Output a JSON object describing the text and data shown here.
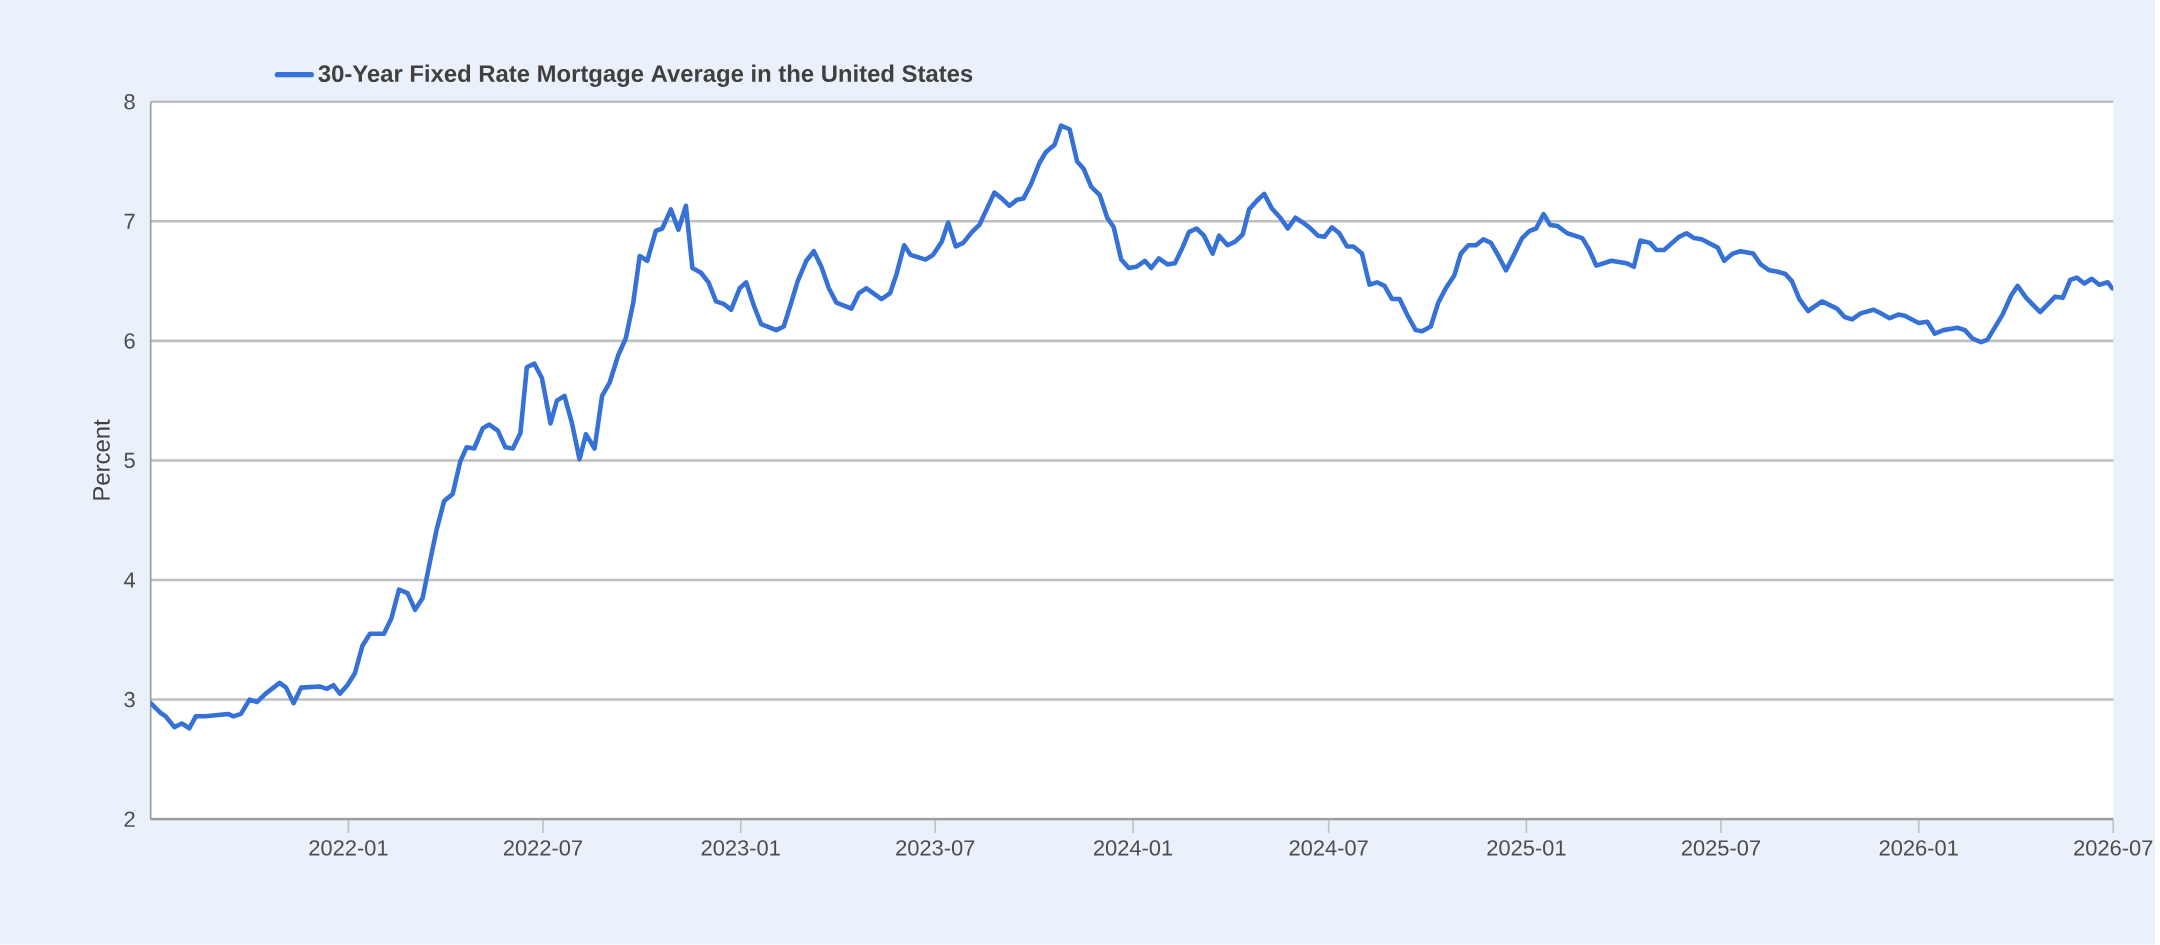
{
  "chart_data": {
    "type": "line",
    "ylabel": "Percent",
    "x": [
      "2021-07-01",
      "2021-07-10",
      "2021-07-15",
      "2021-07-23",
      "2021-07-30",
      "2021-08-06",
      "2021-08-12",
      "2021-08-21",
      "2021-09-11",
      "2021-09-16",
      "2021-09-23",
      "2021-10-01",
      "2021-10-08",
      "2021-10-16",
      "2021-10-29",
      "2021-11-04",
      "2021-11-11",
      "2021-11-18",
      "2021-12-05",
      "2021-12-12",
      "2021-12-18",
      "2021-12-24",
      "2021-12-31",
      "2022-01-07",
      "2022-01-14",
      "2022-01-21",
      "2022-02-03",
      "2022-02-10",
      "2022-02-17",
      "2022-02-25",
      "2022-03-04",
      "2022-03-11",
      "2022-03-18",
      "2022-03-24",
      "2022-03-31",
      "2022-04-08",
      "2022-04-15",
      "2022-04-21",
      "2022-04-28",
      "2022-05-06",
      "2022-05-12",
      "2022-05-20",
      "2022-05-27",
      "2022-06-03",
      "2022-06-10",
      "2022-06-16",
      "2022-06-23",
      "2022-06-30",
      "2022-07-08",
      "2022-07-14",
      "2022-07-21",
      "2022-07-28",
      "2022-08-04",
      "2022-08-10",
      "2022-08-18",
      "2022-08-25",
      "2022-09-01",
      "2022-09-09",
      "2022-09-16",
      "2022-09-23",
      "2022-09-29",
      "2022-10-06",
      "2022-10-14",
      "2022-10-20",
      "2022-10-28",
      "2022-11-04",
      "2022-11-11",
      "2022-11-17",
      "2022-11-25",
      "2022-12-02",
      "2022-12-09",
      "2022-12-16",
      "2022-12-23",
      "2022-12-31",
      "2023-01-06",
      "2023-01-13",
      "2023-01-20",
      "2023-01-26",
      "2023-02-03",
      "2023-02-10",
      "2023-02-17",
      "2023-02-23",
      "2023-03-03",
      "2023-03-10",
      "2023-03-17",
      "2023-03-24",
      "2023-03-31",
      "2023-04-14",
      "2023-04-21",
      "2023-04-28",
      "2023-05-12",
      "2023-05-20",
      "2023-05-26",
      "2023-06-02",
      "2023-06-08",
      "2023-06-22",
      "2023-06-29",
      "2023-07-07",
      "2023-07-13",
      "2023-07-20",
      "2023-07-27",
      "2023-08-04",
      "2023-08-11",
      "2023-08-25",
      "2023-09-01",
      "2023-09-08",
      "2023-09-15",
      "2023-09-21",
      "2023-09-28",
      "2023-10-06",
      "2023-10-12",
      "2023-10-20",
      "2023-10-26",
      "2023-11-03",
      "2023-11-10",
      "2023-11-16",
      "2023-11-23",
      "2023-12-01",
      "2023-12-08",
      "2023-12-14",
      "2023-12-21",
      "2023-12-28",
      "2024-01-04",
      "2024-01-12",
      "2024-01-18",
      "2024-01-25",
      "2024-02-02",
      "2024-02-09",
      "2024-02-16",
      "2024-02-22",
      "2024-02-29",
      "2024-03-07",
      "2024-03-15",
      "2024-03-21",
      "2024-03-29",
      "2024-04-05",
      "2024-04-12",
      "2024-04-18",
      "2024-04-25",
      "2024-05-02",
      "2024-05-09",
      "2024-05-17",
      "2024-05-24",
      "2024-05-31",
      "2024-06-07",
      "2024-06-13",
      "2024-06-21",
      "2024-06-27",
      "2024-07-04",
      "2024-07-11",
      "2024-07-18",
      "2024-07-24",
      "2024-08-01",
      "2024-08-08",
      "2024-08-15",
      "2024-08-22",
      "2024-08-29",
      "2024-09-05",
      "2024-09-12",
      "2024-09-20",
      "2024-09-26",
      "2024-10-04",
      "2024-10-11",
      "2024-10-18",
      "2024-10-26",
      "2024-11-01",
      "2024-11-08",
      "2024-11-15",
      "2024-11-22",
      "2024-11-29",
      "2024-12-06",
      "2024-12-13",
      "2024-12-21",
      "2024-12-28",
      "2025-01-04",
      "2025-01-10",
      "2025-01-17",
      "2025-01-23",
      "2025-01-30",
      "2025-02-08",
      "2025-02-22",
      "2025-02-28",
      "2025-03-07",
      "2025-03-21",
      "2025-04-04",
      "2025-04-11",
      "2025-04-17",
      "2025-04-26",
      "2025-05-02",
      "2025-05-09",
      "2025-05-23",
      "2025-05-30",
      "2025-06-06",
      "2025-06-13",
      "2025-06-28",
      "2025-07-04",
      "2025-07-12",
      "2025-07-19",
      "2025-07-31",
      "2025-08-07",
      "2025-08-15",
      "2025-08-22",
      "2025-08-30",
      "2025-09-05",
      "2025-09-12",
      "2025-09-20",
      "2025-10-03",
      "2025-10-10",
      "2025-10-17",
      "2025-10-24",
      "2025-10-31",
      "2025-11-08",
      "2025-11-20",
      "2025-11-27",
      "2025-12-05",
      "2025-12-13",
      "2025-12-19",
      "2026-01-01",
      "2026-01-09",
      "2026-01-16",
      "2026-01-24",
      "2026-02-06",
      "2026-02-13",
      "2026-02-20",
      "2026-02-28",
      "2026-03-06",
      "2026-03-20",
      "2026-03-28",
      "2026-04-03",
      "2026-04-11",
      "2026-04-24",
      "2026-05-08",
      "2026-05-15",
      "2026-05-22",
      "2026-05-28",
      "2026-06-04",
      "2026-06-11",
      "2026-06-18",
      "2026-06-26",
      "2026-06-30"
    ],
    "series": [
      {
        "name": "30-Year Fixed Rate Mortgage Average in the United States",
        "color": "#3571d6",
        "values": [
          2.97,
          2.89,
          2.86,
          2.77,
          2.8,
          2.76,
          2.86,
          2.86,
          2.88,
          2.86,
          2.88,
          3.0,
          2.98,
          3.05,
          3.14,
          3.1,
          2.97,
          3.1,
          3.11,
          3.09,
          3.12,
          3.05,
          3.12,
          3.22,
          3.45,
          3.55,
          3.55,
          3.68,
          3.92,
          3.89,
          3.75,
          3.85,
          4.16,
          4.42,
          4.66,
          4.72,
          4.99,
          5.11,
          5.1,
          5.27,
          5.3,
          5.25,
          5.11,
          5.1,
          5.23,
          5.78,
          5.81,
          5.69,
          5.31,
          5.5,
          5.54,
          5.31,
          5.01,
          5.22,
          5.1,
          5.54,
          5.65,
          5.88,
          6.02,
          6.32,
          6.71,
          6.67,
          6.92,
          6.94,
          7.1,
          6.93,
          7.13,
          6.61,
          6.57,
          6.49,
          6.33,
          6.31,
          6.26,
          6.44,
          6.49,
          6.3,
          6.14,
          6.12,
          6.09,
          6.12,
          6.32,
          6.5,
          6.67,
          6.75,
          6.62,
          6.44,
          6.32,
          6.27,
          6.4,
          6.44,
          6.35,
          6.4,
          6.56,
          6.8,
          6.72,
          6.68,
          6.72,
          6.83,
          6.99,
          6.79,
          6.82,
          6.91,
          6.97,
          7.24,
          7.19,
          7.13,
          7.18,
          7.19,
          7.31,
          7.49,
          7.58,
          7.64,
          7.8,
          7.77,
          7.5,
          7.44,
          7.29,
          7.22,
          7.03,
          6.95,
          6.68,
          6.61,
          6.62,
          6.67,
          6.61,
          6.69,
          6.64,
          6.65,
          6.78,
          6.91,
          6.94,
          6.88,
          6.73,
          6.88,
          6.8,
          6.83,
          6.89,
          7.1,
          7.17,
          7.23,
          7.11,
          7.03,
          6.94,
          7.03,
          6.99,
          6.95,
          6.88,
          6.87,
          6.95,
          6.9,
          6.79,
          6.79,
          6.73,
          6.47,
          6.49,
          6.46,
          6.35,
          6.35,
          6.22,
          6.09,
          6.08,
          6.12,
          6.32,
          6.44,
          6.55,
          6.73,
          6.8,
          6.8,
          6.85,
          6.82,
          6.71,
          6.59,
          6.73,
          6.86,
          6.92,
          6.94,
          7.06,
          6.97,
          6.96,
          6.9,
          6.86,
          6.77,
          6.63,
          6.67,
          6.65,
          6.62,
          6.84,
          6.82,
          6.76,
          6.76,
          6.87,
          6.9,
          6.86,
          6.85,
          6.78,
          6.67,
          6.73,
          6.75,
          6.73,
          6.64,
          6.59,
          6.58,
          6.56,
          6.5,
          6.35,
          6.25,
          6.33,
          6.3,
          6.27,
          6.2,
          6.18,
          6.23,
          6.26,
          6.23,
          6.19,
          6.22,
          6.21,
          6.15,
          6.16,
          6.06,
          6.09,
          6.11,
          6.09,
          6.02,
          5.99,
          6.01,
          6.22,
          6.38,
          6.46,
          6.36,
          6.24,
          6.37,
          6.36,
          6.51,
          6.53,
          6.48,
          6.52,
          6.47,
          6.49,
          6.44
        ]
      }
    ],
    "xlim": [
      "2021-07-01",
      "2026-07-01"
    ],
    "xticks": [
      "2022-01",
      "2022-07",
      "2023-01",
      "2023-07",
      "2024-01",
      "2024-07",
      "2025-01",
      "2025-07",
      "2026-01",
      "2026-07"
    ],
    "ylim": [
      2,
      8
    ],
    "yticks": [
      2,
      3,
      4,
      5,
      6,
      7,
      8
    ],
    "grid": "y",
    "legend": "top left"
  }
}
